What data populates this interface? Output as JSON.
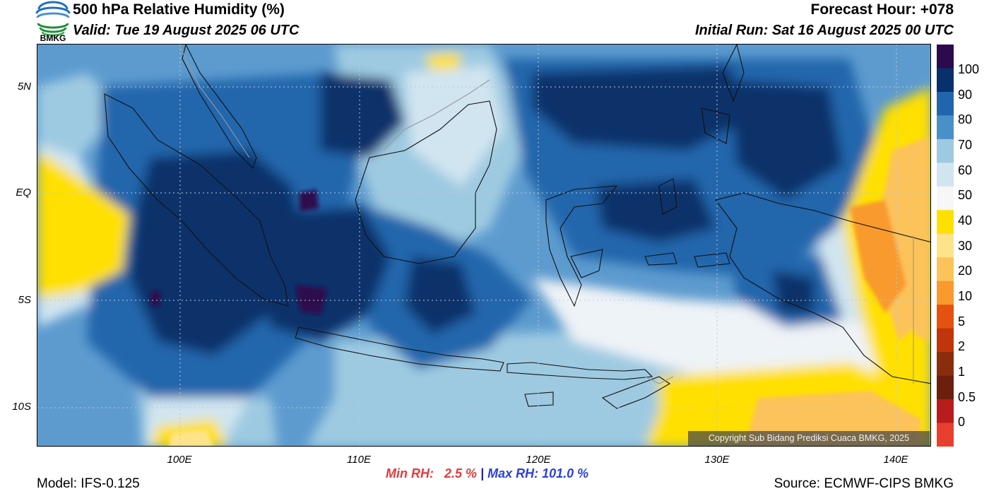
{
  "header": {
    "title": "500 hPa Relative Humidity (%)",
    "valid": "Valid: Tue 19 August 2025 06 UTC",
    "forecast_hour": "Forecast Hour: +078",
    "initial_run": "Initial Run: Sat 16 August 2025 00 UTC"
  },
  "logo": {
    "text": "BMKG",
    "icon": "bmkg-logo-icon"
  },
  "axes": {
    "lat_labels": [
      "5N",
      "EQ",
      "5S",
      "10S"
    ],
    "lon_labels": [
      "100E",
      "110E",
      "120E",
      "130E",
      "140E"
    ]
  },
  "colorbar": {
    "labels": [
      "100",
      "90",
      "80",
      "70",
      "60",
      "50",
      "40",
      "30",
      "20",
      "10",
      "5",
      "2",
      "1",
      "0.5",
      "0"
    ],
    "colors": [
      "#2d0a4e",
      "#08306b",
      "#2166ac",
      "#4a90c8",
      "#9ecae1",
      "#d1e5f0",
      "#f7f7f7",
      "#ffe000",
      "#ffe38a",
      "#fcc35a",
      "#f89a2e",
      "#e3520e",
      "#c0350a",
      "#8a2d0c",
      "#6b1f0c",
      "#b81c1c",
      "#e8402f"
    ]
  },
  "stats": {
    "min_label": "Min RH:",
    "min_value": "2.5 %",
    "separator": "|",
    "max_label": "Max RH:",
    "max_value": "101.0 %"
  },
  "footer": {
    "model": "Model: IFS-0.125",
    "source": "Source: ECMWF-CIPS BMKG",
    "copyright": "Copyright Sub Bidang Prediksi Cuaca BMKG, 2025"
  }
}
